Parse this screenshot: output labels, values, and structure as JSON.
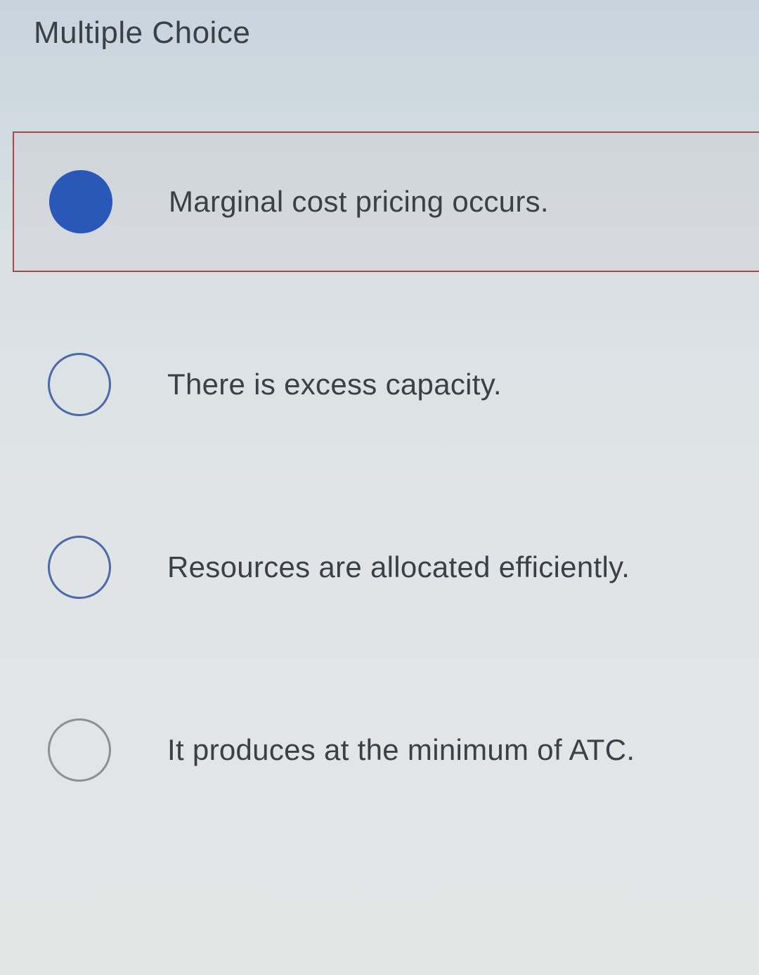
{
  "header": {
    "title": "Multiple Choice"
  },
  "question": {
    "options": [
      {
        "label": "Marginal cost pricing occurs.",
        "selected": true
      },
      {
        "label": "There is excess capacity.",
        "selected": false
      },
      {
        "label": "Resources are allocated efficiently.",
        "selected": false
      },
      {
        "label": "It produces at the minimum of ATC.",
        "selected": false
      }
    ]
  },
  "colors": {
    "selected_fill": "#2a58b8",
    "radio_border": "#4a6aa8",
    "radio_border_grey": "#8a9098",
    "selected_box_border": "#a84a4a",
    "text": "#3a4048"
  }
}
